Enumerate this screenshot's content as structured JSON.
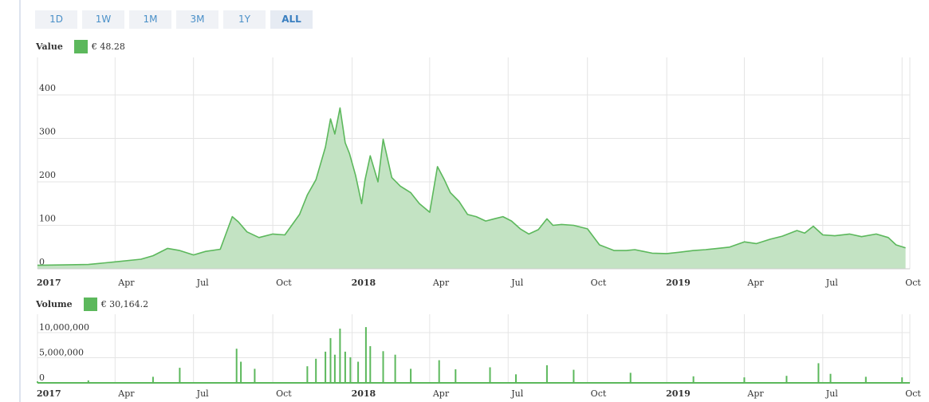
{
  "range_selector": {
    "buttons": [
      "1D",
      "1W",
      "1M",
      "3M",
      "1Y",
      "ALL"
    ],
    "active": "ALL"
  },
  "colors": {
    "series": "#5cb85c",
    "fill": "#c3e3c3",
    "grid": "#e4e4e4",
    "button_bg": "#f0f2f6",
    "button_text": "#4a90c8"
  },
  "chart_data": [
    {
      "type": "area",
      "legend_name": "Value",
      "legend_value": "€ 48.28",
      "x_tick_labels": [
        "2017",
        "Apr",
        "Jul",
        "Oct",
        "2018",
        "Apr",
        "Jul",
        "Oct",
        "2019",
        "Apr",
        "Jul",
        "Oct"
      ],
      "y_ticks": [
        0,
        100,
        200,
        300,
        400
      ],
      "ylim": [
        0,
        440
      ],
      "xlim": [
        "2017-01-01",
        "2019-10-05"
      ],
      "grid": true,
      "series": [
        {
          "x": [
            "2017-01-01",
            "2017-02-01",
            "2017-03-01",
            "2017-04-01",
            "2017-05-01",
            "2017-05-15",
            "2017-06-01",
            "2017-06-15",
            "2017-07-01",
            "2017-07-15",
            "2017-08-01",
            "2017-08-15",
            "2017-08-22",
            "2017-09-01",
            "2017-09-15",
            "2017-10-01",
            "2017-10-15",
            "2017-11-01",
            "2017-11-10",
            "2017-11-20",
            "2017-12-01",
            "2017-12-07",
            "2017-12-12",
            "2017-12-18",
            "2017-12-24",
            "2017-12-29",
            "2018-01-05",
            "2018-01-12",
            "2018-01-16",
            "2018-01-22",
            "2018-01-31",
            "2018-02-06",
            "2018-02-16",
            "2018-02-26",
            "2018-03-10",
            "2018-03-20",
            "2018-04-01",
            "2018-04-10",
            "2018-04-18",
            "2018-04-25",
            "2018-05-05",
            "2018-05-15",
            "2018-05-25",
            "2018-06-05",
            "2018-06-15",
            "2018-06-25",
            "2018-07-05",
            "2018-07-15",
            "2018-07-25",
            "2018-08-05",
            "2018-08-15",
            "2018-08-22",
            "2018-09-01",
            "2018-09-15",
            "2018-10-01",
            "2018-10-15",
            "2018-11-01",
            "2018-11-15",
            "2018-11-25",
            "2018-12-05",
            "2018-12-15",
            "2019-01-01",
            "2019-01-15",
            "2019-02-01",
            "2019-02-15",
            "2019-03-01",
            "2019-03-15",
            "2019-04-01",
            "2019-04-15",
            "2019-05-01",
            "2019-05-15",
            "2019-06-01",
            "2019-06-10",
            "2019-06-20",
            "2019-07-01",
            "2019-07-15",
            "2019-08-01",
            "2019-08-15",
            "2019-09-01",
            "2019-09-15",
            "2019-09-24",
            "2019-10-05"
          ],
          "y": [
            8,
            9,
            10,
            16,
            22,
            30,
            47,
            42,
            32,
            40,
            45,
            120,
            108,
            85,
            72,
            80,
            78,
            125,
            170,
            205,
            280,
            345,
            310,
            370,
            290,
            265,
            215,
            150,
            205,
            260,
            200,
            298,
            210,
            190,
            175,
            150,
            130,
            235,
            205,
            175,
            155,
            125,
            120,
            110,
            115,
            120,
            110,
            92,
            80,
            90,
            115,
            100,
            102,
            100,
            92,
            55,
            42,
            42,
            44,
            40,
            36,
            35,
            38,
            42,
            44,
            47,
            50,
            62,
            58,
            68,
            75,
            88,
            82,
            98,
            78,
            76,
            80,
            74,
            80,
            72,
            55,
            48
          ]
        }
      ]
    },
    {
      "type": "bar",
      "legend_name": "Volume",
      "legend_value": "€ 30,164.2",
      "x_tick_labels": [
        "2017",
        "Apr",
        "Jul",
        "Oct",
        "2018",
        "Apr",
        "Jul",
        "Oct",
        "2019",
        "Apr",
        "Jul",
        "Oct"
      ],
      "y_ticks": [
        0,
        5000000,
        10000000
      ],
      "y_tick_labels": [
        "0",
        "5,000,000",
        "10,000,000"
      ],
      "ylim": [
        0,
        12500000
      ],
      "grid": true,
      "series": [
        {
          "x": [
            "2017-01-01",
            "2017-03-01",
            "2017-05-15",
            "2017-06-15",
            "2017-08-20",
            "2017-08-25",
            "2017-09-10",
            "2017-11-10",
            "2017-11-20",
            "2017-12-01",
            "2017-12-07",
            "2017-12-12",
            "2017-12-18",
            "2017-12-24",
            "2017-12-30",
            "2018-01-08",
            "2018-01-17",
            "2018-01-22",
            "2018-02-06",
            "2018-02-20",
            "2018-03-10",
            "2018-04-12",
            "2018-05-01",
            "2018-06-10",
            "2018-07-10",
            "2018-08-15",
            "2018-09-15",
            "2018-11-20",
            "2019-02-01",
            "2019-04-01",
            "2019-05-20",
            "2019-06-26",
            "2019-07-10",
            "2019-08-20",
            "2019-10-01"
          ],
          "y": [
            300000,
            500000,
            1200000,
            3000000,
            6800000,
            4200000,
            2800000,
            3300000,
            4800000,
            6200000,
            8900000,
            5600000,
            10800000,
            6200000,
            5100000,
            4200000,
            11100000,
            7300000,
            6300000,
            5600000,
            2800000,
            4500000,
            2700000,
            3100000,
            1700000,
            3500000,
            2600000,
            2000000,
            1300000,
            1100000,
            1400000,
            3900000,
            1800000,
            1200000,
            1100000
          ]
        }
      ]
    }
  ]
}
